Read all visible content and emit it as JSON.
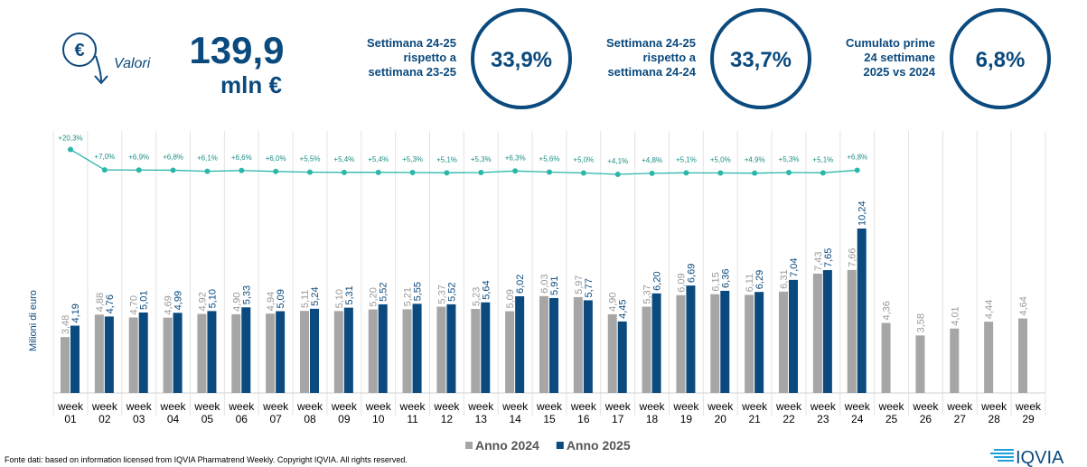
{
  "header": {
    "label": "Valori",
    "total": "139,9",
    "unit": "mln €",
    "comparisons": [
      {
        "text": [
          "Settimana 24-25",
          "rispetto a",
          "settimana 23-25"
        ],
        "value": "33,9%"
      },
      {
        "text": [
          "Settimana 24-25",
          "rispetto a",
          "settimana 24-24"
        ],
        "value": "33,7%"
      },
      {
        "text": [
          "Cumulato prime",
          "24 settimane",
          "2025 vs 2024"
        ],
        "value": "6,8%"
      }
    ]
  },
  "chart_data": {
    "type": "bar",
    "y_label": "Milioni di euro",
    "categories": [
      "week 01",
      "week 02",
      "week 03",
      "week 04",
      "week 05",
      "week 06",
      "week 07",
      "week 08",
      "week 09",
      "week 10",
      "week 11",
      "week 12",
      "week 13",
      "week 14",
      "week 15",
      "week 16",
      "week 17",
      "week 18",
      "week 19",
      "week 20",
      "week 21",
      "week 22",
      "week 23",
      "week 24",
      "week 25",
      "week 26",
      "week 27",
      "week 28",
      "week 29"
    ],
    "series": [
      {
        "name": "Anno 2024",
        "color": "#a6a6a6",
        "values": [
          3.48,
          4.88,
          4.7,
          4.69,
          4.92,
          4.9,
          4.94,
          5.11,
          5.1,
          5.2,
          5.21,
          5.37,
          5.23,
          5.09,
          6.03,
          5.97,
          4.9,
          5.37,
          6.09,
          6.15,
          6.11,
          6.31,
          7.43,
          7.66,
          4.36,
          3.58,
          4.01,
          4.44,
          4.64
        ],
        "value_labels": [
          "3,48",
          "4,88",
          "4,70",
          "4,69",
          "4,92",
          "4,90",
          "4,94",
          "5,11",
          "5,10",
          "5,20",
          "5,21",
          "5,37",
          "5,23",
          "5,09",
          "6,03",
          "5,97",
          "4,90",
          "5,37",
          "6,09",
          "6,15",
          "6,11",
          "6,31",
          "7,43",
          "7,66",
          "4,36",
          "3,58",
          "4,01",
          "4,44",
          "4,64"
        ]
      },
      {
        "name": "Anno 2025",
        "color": "#0b4a7e",
        "values": [
          4.19,
          4.76,
          5.01,
          4.99,
          5.1,
          5.33,
          5.09,
          5.24,
          5.31,
          5.52,
          5.55,
          5.52,
          5.64,
          6.02,
          5.91,
          5.77,
          4.45,
          6.2,
          6.69,
          6.36,
          6.29,
          7.04,
          7.65,
          10.24,
          null,
          null,
          null,
          null,
          null
        ],
        "value_labels": [
          "4,19",
          "4,76",
          "5,01",
          "4,99",
          "5,10",
          "5,33",
          "5,09",
          "5,24",
          "5,31",
          "5,52",
          "5,55",
          "5,52",
          "5,64",
          "6,02",
          "5,91",
          "5,77",
          "4,45",
          "6,20",
          "6,69",
          "6,36",
          "6,29",
          "7,04",
          "7,65",
          "10,24",
          null,
          null,
          null,
          null,
          null
        ]
      }
    ],
    "growth": {
      "color": "#2ab7a9",
      "values": [
        20.3,
        7.0,
        6.9,
        6.8,
        6.1,
        6.6,
        6.0,
        5.5,
        5.4,
        5.4,
        5.3,
        5.1,
        5.3,
        6.3,
        5.6,
        5.0,
        4.1,
        4.8,
        5.1,
        5.0,
        4.9,
        5.3,
        5.1,
        6.8
      ],
      "value_labels": [
        "+20,3%",
        "+7,0%",
        "+6,9%",
        "+6,8%",
        "+6,1%",
        "+6,6%",
        "+6,0%",
        "+5,5%",
        "+5,4%",
        "+5,4%",
        "+5,3%",
        "+5,1%",
        "+5,3%",
        "+6,3%",
        "+5,6%",
        "+5,0%",
        "+4,1%",
        "+4,8%",
        "+5,1%",
        "+5,0%",
        "+4,9%",
        "+5,3%",
        "+5,1%",
        "+6,8%"
      ]
    }
  },
  "footer": {
    "source": "Fonte dati: based on information licensed from IQVIA Pharmatrend Weekly. Copyright IQVIA. All rights reserved.",
    "logo": "IQVIA"
  }
}
